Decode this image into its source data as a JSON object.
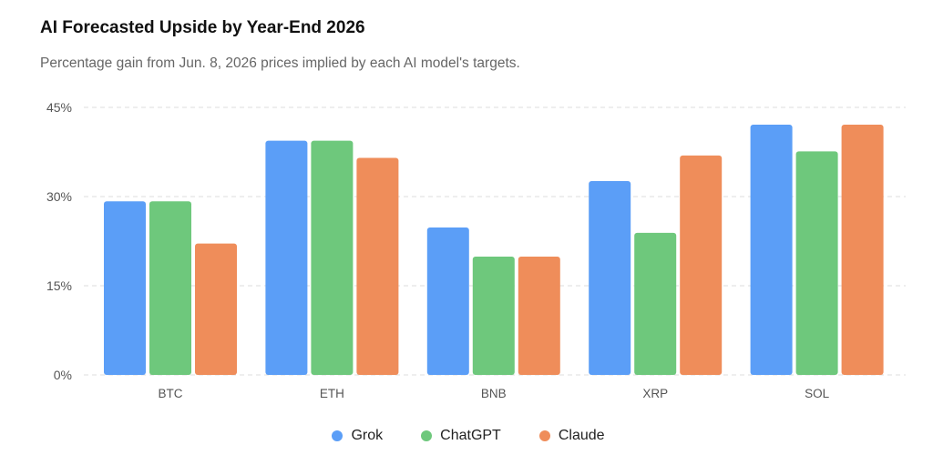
{
  "chart_data": {
    "type": "bar",
    "title": "AI Forecasted Upside by Year-End 2026",
    "subtitle": "Percentage gain from Jun. 8, 2026 prices implied by each AI model's targets.",
    "categories": [
      "BTC",
      "ETH",
      "BNB",
      "XRP",
      "SOL"
    ],
    "series": [
      {
        "name": "Grok",
        "color": "#5b9ef7",
        "values": [
          29.2,
          39.4,
          24.8,
          32.6,
          42.1
        ]
      },
      {
        "name": "ChatGPT",
        "color": "#6ec87c",
        "values": [
          29.2,
          39.4,
          19.9,
          23.9,
          37.6
        ]
      },
      {
        "name": "Claude",
        "color": "#ef8d5a",
        "values": [
          22.1,
          36.5,
          19.9,
          36.9,
          42.1
        ]
      }
    ],
    "yticks": [
      "0%",
      "15%",
      "30%",
      "45%"
    ],
    "ytick_values": [
      0,
      15,
      30,
      45
    ],
    "ylim": [
      0,
      45
    ],
    "xlabel": "",
    "ylabel": "",
    "grid": true,
    "legend": "bottom"
  }
}
